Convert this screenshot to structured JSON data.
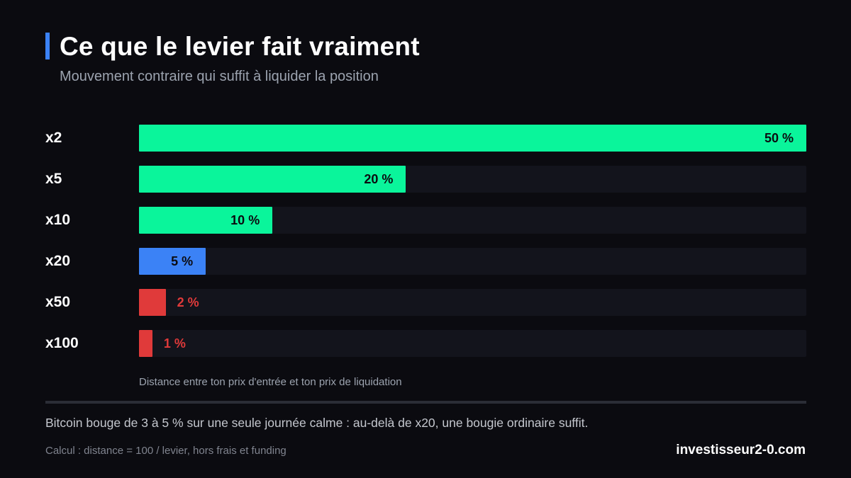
{
  "header": {
    "title": "Ce que le levier fait vraiment",
    "subtitle": "Mouvement contraire qui suffit à liquider la position"
  },
  "chart_data": {
    "type": "bar",
    "orientation": "horizontal",
    "categories": [
      "x2",
      "x5",
      "x10",
      "x20",
      "x50",
      "x100"
    ],
    "values": [
      50,
      20,
      10,
      5,
      2,
      1
    ],
    "value_labels": [
      "50 %",
      "20 %",
      "10 %",
      "5 %",
      "2 %",
      "1 %"
    ],
    "bar_colors": [
      "#0af59b",
      "#0af59b",
      "#0af59b",
      "#3b82f6",
      "#e03a3a",
      "#e03a3a"
    ],
    "xlim": [
      0,
      50
    ],
    "xlabel": "Distance entre ton prix d'entrée et ton prix de liquidation",
    "grid": false,
    "legend": "none"
  },
  "footer": {
    "takeaway": "Bitcoin bouge de 3 à 5 % sur une seule journée calme : au-delà de x20, une bougie ordinaire suffit.",
    "source": "Calcul : distance = 100 / levier, hors frais et funding",
    "brand": "investisseur2-0.com"
  },
  "colors": {
    "background": "#0b0b10",
    "track": "#13141c",
    "accent": "#3b82f6",
    "safe": "#0af59b",
    "warning": "#3b82f6",
    "danger": "#e03a3a"
  }
}
